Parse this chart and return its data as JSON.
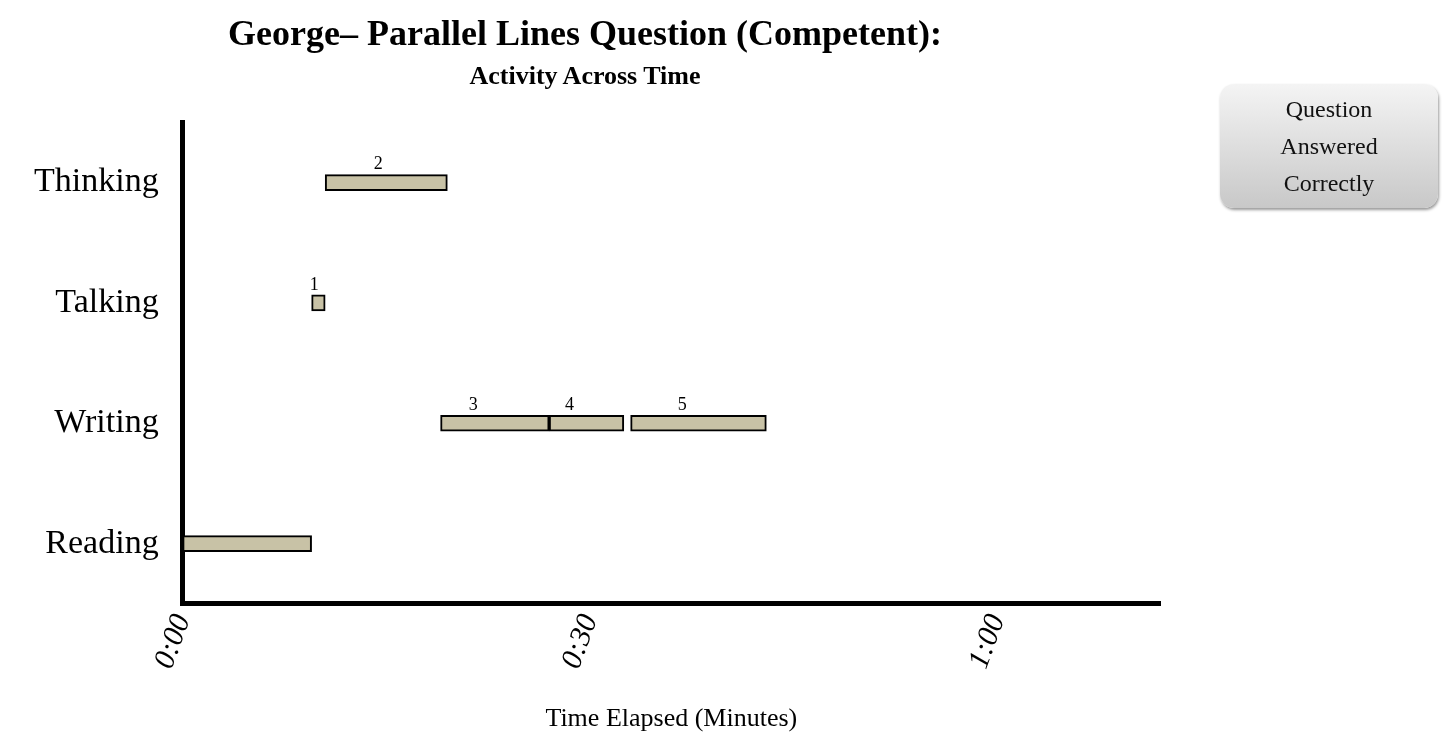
{
  "chart_data": {
    "type": "bar",
    "orientation": "horizontal",
    "title": "George– Parallel Lines Question (Competent):",
    "subtitle": "Activity Across Time",
    "xlabel": "Time Elapsed (Minutes)",
    "categories": [
      "Thinking",
      "Talking",
      "Writing",
      "Reading"
    ],
    "xlim": [
      0,
      72
    ],
    "xticks": [
      {
        "value": 0,
        "label": "0:00"
      },
      {
        "value": 30,
        "label": "0:30"
      },
      {
        "value": 60,
        "label": "1:00"
      }
    ],
    "series": [
      {
        "color": "#c8c2a6",
        "base": [
          10.5,
          9.5,
          19,
          0
        ],
        "values": [
          9,
          1,
          8,
          9.5
        ]
      },
      {
        "color": "#c8c2a6",
        "base": [
          null,
          null,
          27,
          null
        ],
        "values": [
          null,
          null,
          5.5,
          null
        ]
      },
      {
        "color": "#c8c2a6",
        "base": [
          null,
          null,
          33,
          null
        ],
        "values": [
          null,
          null,
          10,
          null
        ]
      }
    ],
    "grid": false,
    "legend": false,
    "annotations": [
      "Question Answered Correctly",
      {
        "text": "2",
        "x": 14.4,
        "y": "Thinking"
      },
      {
        "text": "1",
        "x": 9.7,
        "y": "Talking"
      },
      {
        "text": "3",
        "x": 21.4,
        "y": "Writing"
      },
      {
        "text": "4",
        "x": 28.5,
        "y": "Writing"
      },
      {
        "text": "5",
        "x": 36.8,
        "y": "Writing"
      }
    ]
  }
}
